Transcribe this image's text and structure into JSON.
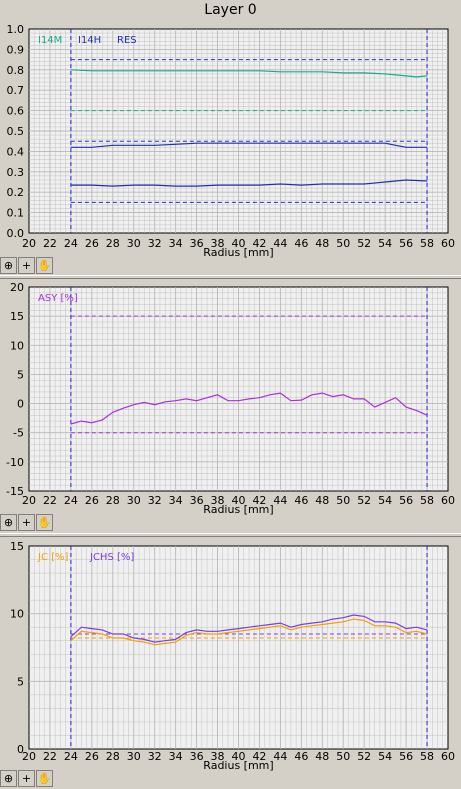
{
  "title": "Layer 0",
  "colors": {
    "I14M": "#1aaa8c",
    "I14H": "#1f2fb0",
    "RES": "#1f2fb0",
    "ASY": "#a633d6",
    "JC": "#f5a000",
    "JCHS": "#7a3de6",
    "grid": "#b8b8b8",
    "plot_bg": "#f0f0f0",
    "marker": "#2222cc"
  },
  "toolbar": {
    "zoom_label": "⊕",
    "add_label": "+",
    "pan_label": "✋"
  },
  "chart_data": [
    {
      "type": "line",
      "xlabel": "Radius [mm]",
      "xlim": [
        20,
        60
      ],
      "ylim": [
        0.0,
        1.0
      ],
      "x_ticks": [
        "20",
        "22",
        "24",
        "26",
        "28",
        "30",
        "32",
        "34",
        "36",
        "38",
        "40",
        "42",
        "44",
        "46",
        "48",
        "50",
        "52",
        "54",
        "56",
        "58",
        "60"
      ],
      "y_ticks": [
        "0.0",
        "0.1",
        "0.2",
        "0.3",
        "0.4",
        "0.5",
        "0.6",
        "0.7",
        "0.8",
        "0.9",
        "1.0"
      ],
      "grid": true,
      "legend": [
        "I14M",
        "I14H",
        "RES"
      ],
      "markers_x": [
        24,
        58
      ],
      "reference_lines": [
        {
          "y": 0.85,
          "color": "#2233cc"
        },
        {
          "y": 0.6,
          "color": "#1aaa8c"
        },
        {
          "y": 0.45,
          "color": "#2233cc"
        },
        {
          "y": 0.15,
          "color": "#2233cc"
        }
      ],
      "series": [
        {
          "name": "I14M",
          "x": [
            24,
            26,
            28,
            30,
            32,
            34,
            36,
            38,
            40,
            42,
            44,
            46,
            48,
            50,
            52,
            54,
            56,
            57,
            58
          ],
          "values": [
            0.8,
            0.795,
            0.795,
            0.795,
            0.795,
            0.795,
            0.795,
            0.795,
            0.795,
            0.795,
            0.79,
            0.79,
            0.79,
            0.785,
            0.785,
            0.78,
            0.77,
            0.765,
            0.77
          ]
        },
        {
          "name": "I14H",
          "x": [
            24,
            26,
            28,
            30,
            32,
            34,
            36,
            38,
            40,
            42,
            44,
            46,
            48,
            50,
            52,
            54,
            55,
            56,
            58
          ],
          "values": [
            0.42,
            0.42,
            0.43,
            0.43,
            0.43,
            0.435,
            0.44,
            0.44,
            0.44,
            0.44,
            0.44,
            0.44,
            0.44,
            0.44,
            0.44,
            0.44,
            0.43,
            0.42,
            0.42
          ]
        },
        {
          "name": "RES",
          "x": [
            24,
            26,
            28,
            30,
            32,
            34,
            36,
            38,
            40,
            42,
            44,
            46,
            48,
            50,
            52,
            54,
            55,
            56,
            58
          ],
          "values": [
            0.235,
            0.235,
            0.23,
            0.235,
            0.235,
            0.23,
            0.23,
            0.235,
            0.235,
            0.235,
            0.24,
            0.235,
            0.24,
            0.24,
            0.24,
            0.25,
            0.255,
            0.26,
            0.255
          ]
        }
      ]
    },
    {
      "type": "line",
      "xlabel": "Radius [mm]",
      "xlim": [
        20,
        60
      ],
      "ylim": [
        -15,
        20
      ],
      "x_ticks": [
        "20",
        "22",
        "24",
        "26",
        "28",
        "30",
        "32",
        "34",
        "36",
        "38",
        "40",
        "42",
        "44",
        "46",
        "48",
        "50",
        "52",
        "54",
        "56",
        "58",
        "60"
      ],
      "y_ticks": [
        "-15",
        "-10",
        "-5",
        "0",
        "5",
        "10",
        "15",
        "20"
      ],
      "grid": true,
      "legend": [
        "ASY [%]"
      ],
      "markers_x": [
        24,
        58
      ],
      "reference_lines": [
        {
          "y": 15,
          "color": "#a633d6"
        },
        {
          "y": -5,
          "color": "#a633d6"
        }
      ],
      "series": [
        {
          "name": "ASY [%]",
          "x": [
            24,
            25,
            26,
            27,
            28,
            29,
            30,
            31,
            32,
            33,
            34,
            35,
            36,
            37,
            38,
            39,
            40,
            41,
            42,
            43,
            44,
            45,
            46,
            47,
            48,
            49,
            50,
            51,
            52,
            53,
            54,
            55,
            56,
            57,
            58
          ],
          "values": [
            -3.5,
            -3.0,
            -3.3,
            -2.8,
            -1.5,
            -0.8,
            -0.2,
            0.2,
            -0.2,
            0.3,
            0.5,
            0.8,
            0.5,
            1.0,
            1.5,
            0.5,
            0.5,
            0.8,
            1.0,
            1.5,
            1.8,
            0.5,
            0.6,
            1.5,
            1.8,
            1.2,
            1.5,
            0.8,
            0.8,
            -0.6,
            0.2,
            1.0,
            -0.6,
            -1.2,
            -2.0
          ]
        }
      ]
    },
    {
      "type": "line",
      "xlabel": "Radius [mm]",
      "xlim": [
        20,
        60
      ],
      "ylim": [
        0,
        15
      ],
      "x_ticks": [
        "20",
        "22",
        "24",
        "26",
        "28",
        "30",
        "32",
        "34",
        "36",
        "38",
        "40",
        "42",
        "44",
        "46",
        "48",
        "50",
        "52",
        "54",
        "56",
        "58",
        "60"
      ],
      "y_ticks": [
        "0",
        "5",
        "10",
        "15"
      ],
      "grid": true,
      "legend": [
        "JC [%]",
        "JCHS [%]"
      ],
      "markers_x": [
        24,
        58
      ],
      "reference_lines": [
        {
          "y": 8.2,
          "color": "#f5a000"
        },
        {
          "y": 8.5,
          "color": "#7a3de6"
        }
      ],
      "series": [
        {
          "name": "JC [%]",
          "x": [
            24,
            25,
            26,
            27,
            28,
            29,
            30,
            31,
            32,
            33,
            34,
            35,
            36,
            37,
            38,
            39,
            40,
            41,
            42,
            43,
            44,
            45,
            46,
            47,
            48,
            49,
            50,
            51,
            52,
            53,
            54,
            55,
            56,
            57,
            58
          ],
          "values": [
            8.0,
            8.7,
            8.6,
            8.5,
            8.2,
            8.2,
            8.0,
            7.9,
            7.7,
            7.8,
            7.9,
            8.4,
            8.6,
            8.5,
            8.5,
            8.6,
            8.7,
            8.8,
            8.9,
            9.0,
            9.1,
            8.8,
            9.0,
            9.1,
            9.2,
            9.3,
            9.4,
            9.6,
            9.5,
            9.1,
            9.1,
            9.0,
            8.6,
            8.7,
            8.5
          ]
        },
        {
          "name": "JCHS [%]",
          "x": [
            24,
            25,
            26,
            27,
            28,
            29,
            30,
            31,
            32,
            33,
            34,
            35,
            36,
            37,
            38,
            39,
            40,
            41,
            42,
            43,
            44,
            45,
            46,
            47,
            48,
            49,
            50,
            51,
            52,
            53,
            54,
            55,
            56,
            57,
            58
          ],
          "values": [
            8.3,
            9.0,
            8.9,
            8.8,
            8.5,
            8.5,
            8.2,
            8.1,
            7.9,
            8.0,
            8.1,
            8.6,
            8.8,
            8.7,
            8.7,
            8.8,
            8.9,
            9.0,
            9.1,
            9.2,
            9.3,
            9.0,
            9.2,
            9.3,
            9.4,
            9.6,
            9.7,
            9.9,
            9.8,
            9.4,
            9.4,
            9.3,
            8.9,
            9.0,
            8.8
          ]
        }
      ]
    }
  ]
}
